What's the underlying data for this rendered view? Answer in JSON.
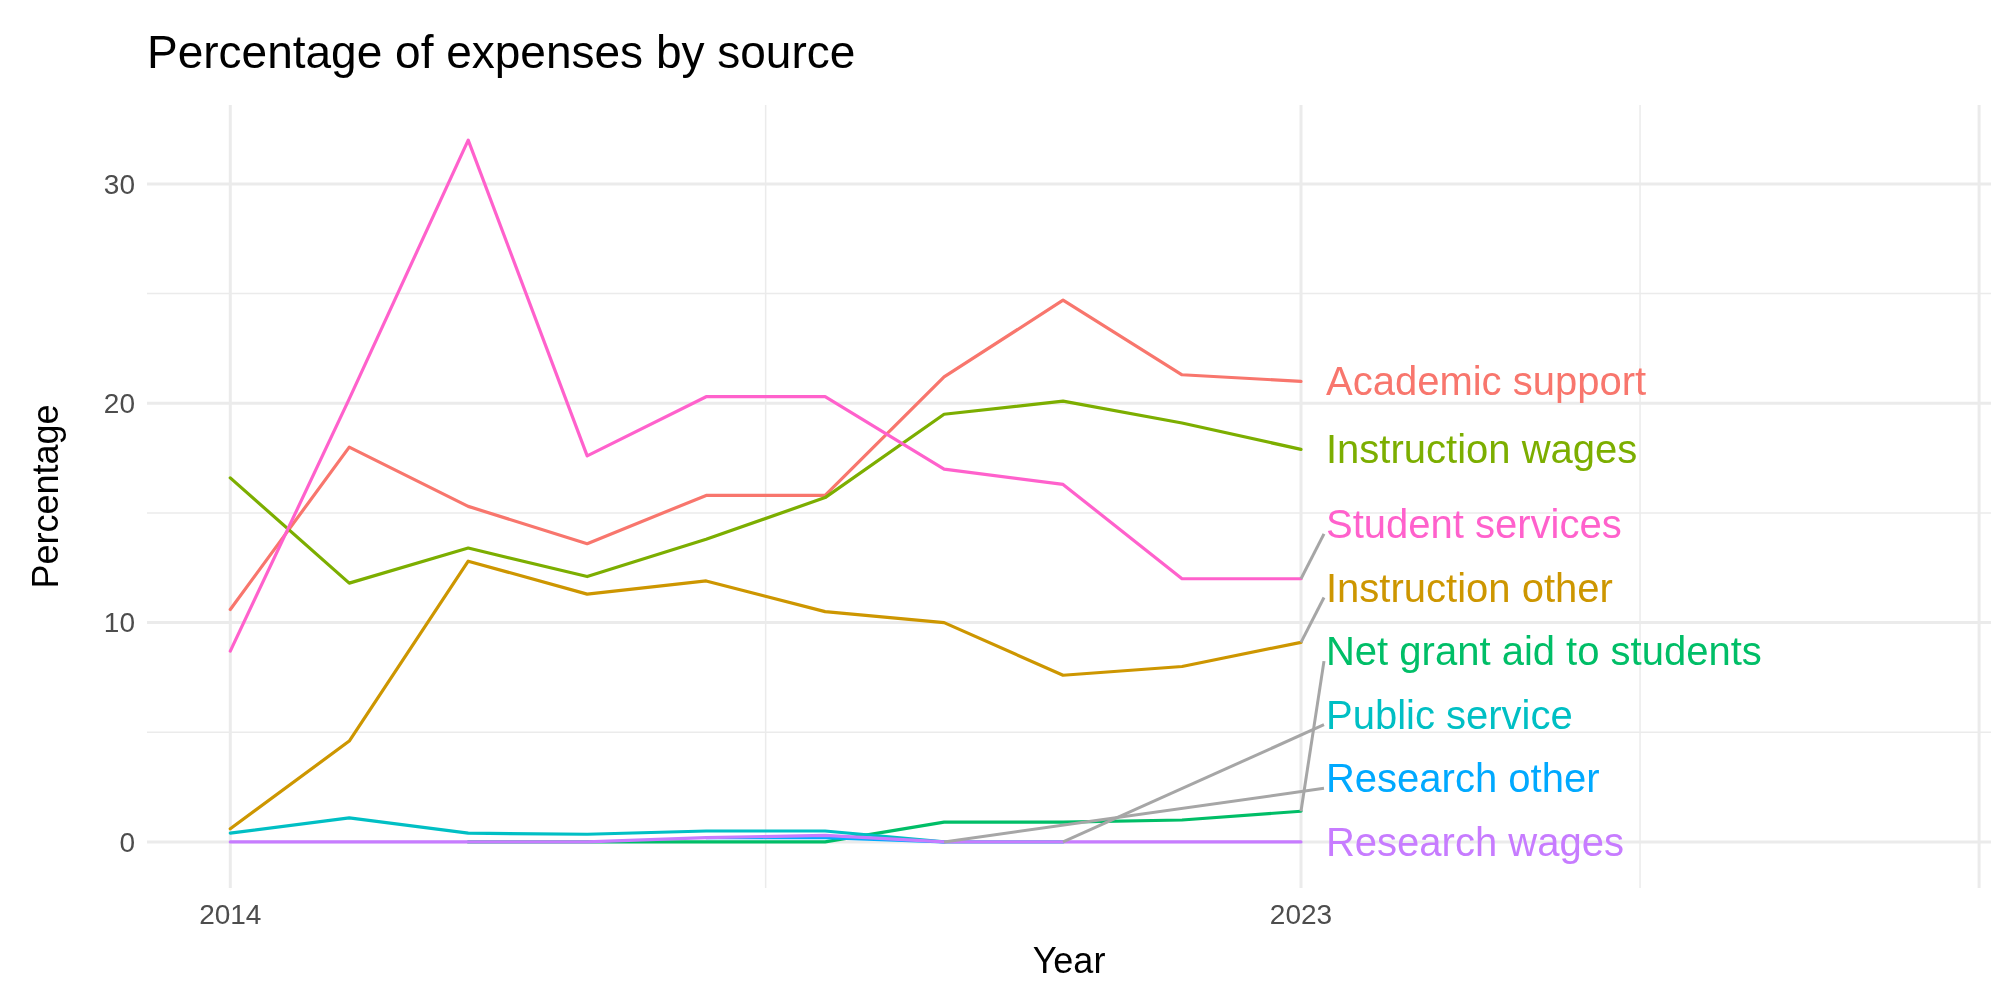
{
  "chart_data": {
    "type": "line",
    "title": "Percentage of expenses by source",
    "xlabel": "Year",
    "ylabel": "Percentage",
    "x": [
      2014,
      2015,
      2016,
      2017,
      2018,
      2019,
      2020,
      2021,
      2022,
      2023
    ],
    "xlim": [
      2013.3,
      2028.8
    ],
    "xticks": [
      2014,
      2023,
      {
        "value": 2028.7,
        "label": null
      }
    ],
    "ylim": [
      -2.1,
      33.6
    ],
    "yticks": [
      0,
      10,
      20,
      30
    ],
    "grid": true,
    "legend": false,
    "marker": "none",
    "line_style": "solid",
    "series": [
      {
        "name": "Academic support",
        "color": "#f8766d",
        "values": [
          10.6,
          18.0,
          15.3,
          13.6,
          15.8,
          15.8,
          21.2,
          24.7,
          21.3,
          21.0
        ]
      },
      {
        "name": "Instruction wages",
        "color": "#7cae00",
        "values": [
          16.6,
          11.8,
          13.4,
          12.1,
          13.8,
          15.7,
          19.5,
          20.1,
          19.1,
          17.9
        ]
      },
      {
        "name": "Student services",
        "color": "#ff61cc",
        "values": [
          8.7,
          20.2,
          32.0,
          17.6,
          20.3,
          20.3,
          17.0,
          16.3,
          12.0,
          12.0
        ]
      },
      {
        "name": "Instruction other",
        "color": "#cd9600",
        "values": [
          0.6,
          4.6,
          12.8,
          11.3,
          11.9,
          10.5,
          10.0,
          7.6,
          8.0,
          9.1
        ]
      },
      {
        "name": "Net grant aid to students",
        "color": "#00be67",
        "values": [
          null,
          null,
          0,
          0,
          0,
          0,
          0.9,
          0.9,
          1.0,
          1.4
        ]
      },
      {
        "name": "Public service",
        "color": "#00bfc4",
        "values": [
          0.4,
          1.1,
          0.4,
          0.35,
          0.5,
          0.5,
          0,
          0,
          null,
          null
        ]
      },
      {
        "name": "Research other",
        "color": "#00a9ff",
        "values": [
          null,
          null,
          null,
          null,
          0.2,
          0.2,
          0,
          null,
          null,
          null
        ]
      },
      {
        "name": "Research wages",
        "color": "#c77cff",
        "values": [
          0,
          0,
          0,
          0,
          0.2,
          0.3,
          0,
          0,
          0,
          0
        ]
      }
    ]
  }
}
